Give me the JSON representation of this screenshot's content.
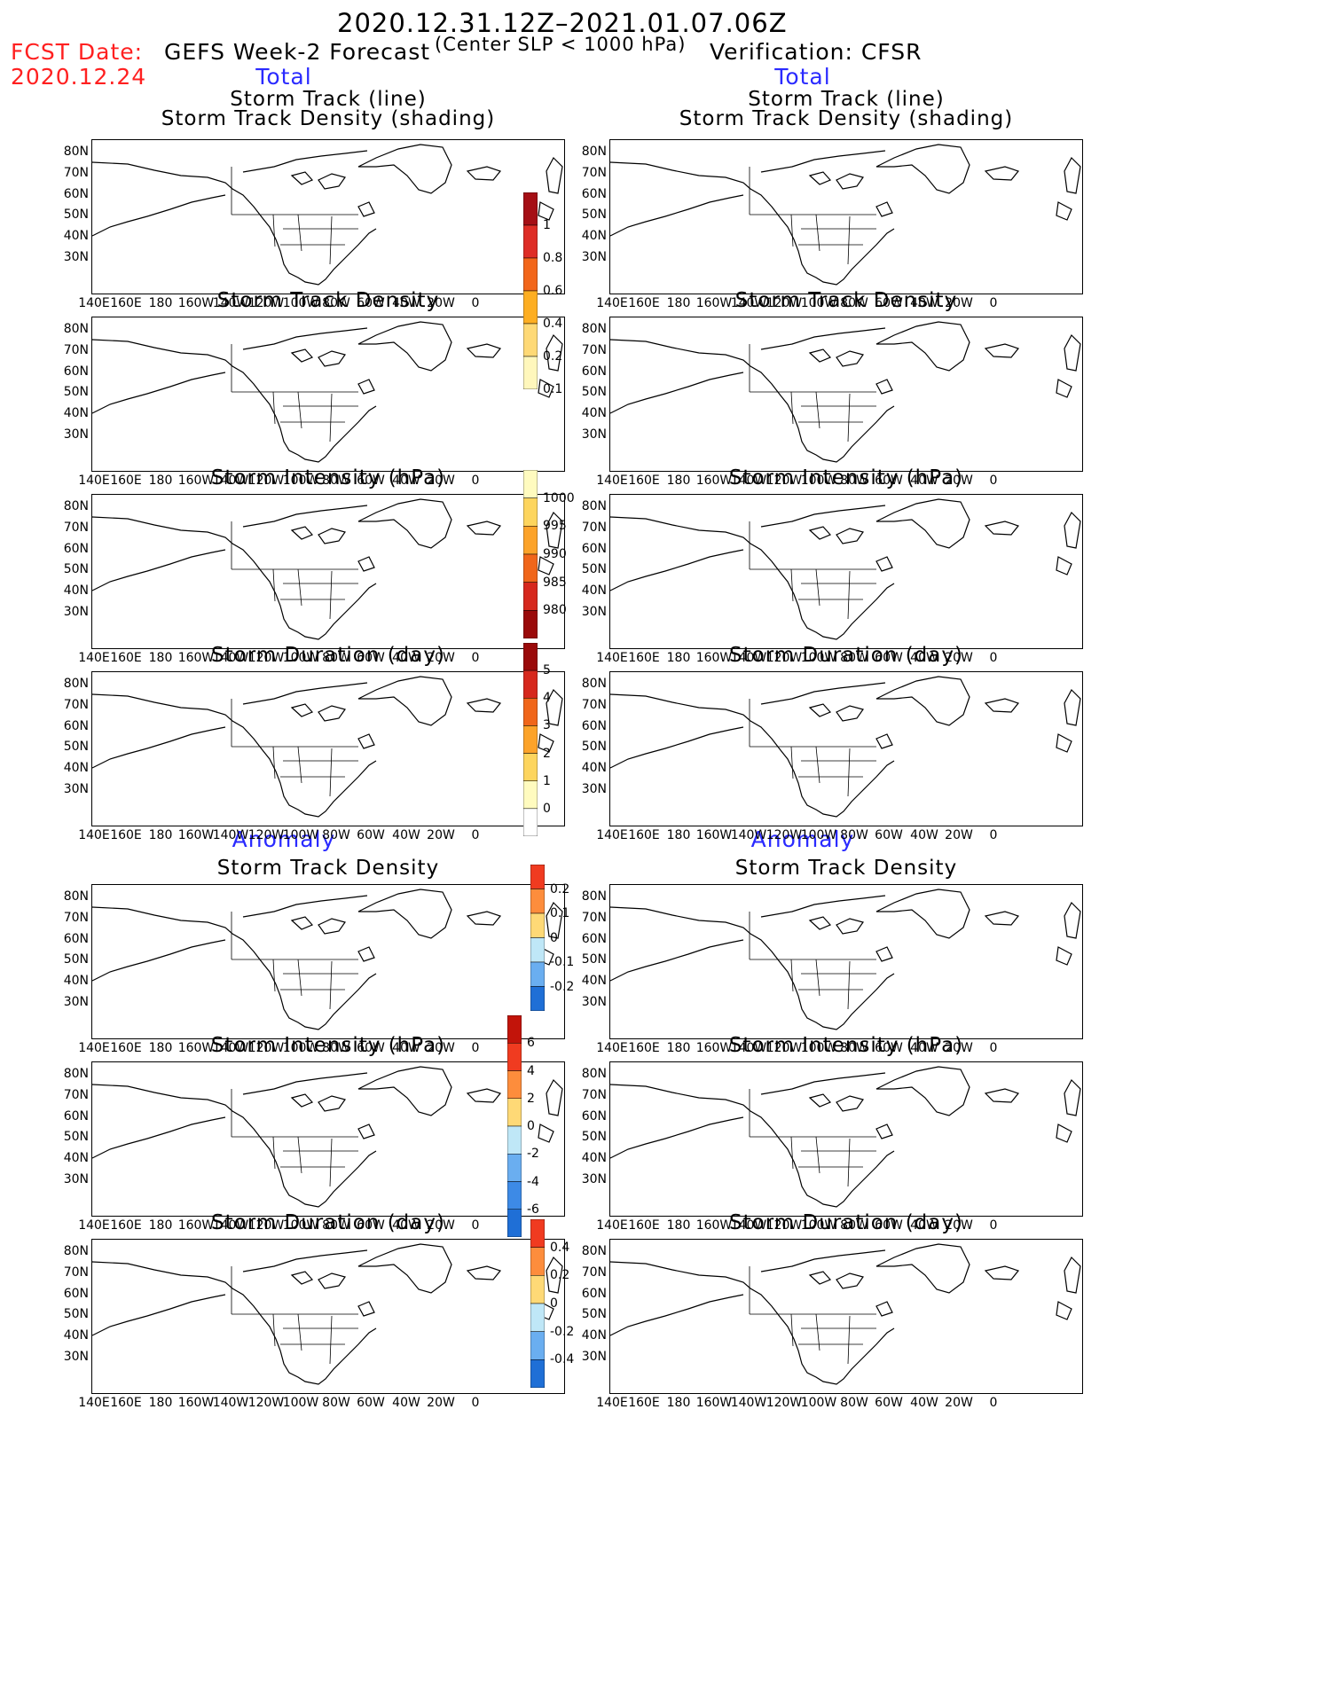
{
  "header": {
    "title": "2020.12.31.12Z–2021.01.07.06Z",
    "subtitle": "(Center SLP < 1000 hPa)",
    "fcst_label": "FCST Date:",
    "fcst_date": "2020.12.24",
    "left_heading": "GEFS Week-2 Forecast",
    "right_heading": "Verification: CFSR"
  },
  "sections": {
    "total": "Total",
    "anomaly": "Anomaly"
  },
  "panel_titles": {
    "track_line": "Storm Track (line)",
    "track_shading": "Storm Track Density (shading)",
    "density": "Storm Track Density",
    "intensity": "Storm Intensity (hPa)",
    "duration": "Storm Duration (day)"
  },
  "axes": {
    "lat_labels": [
      "80N",
      "70N",
      "60N",
      "50N",
      "40N",
      "30N"
    ],
    "lon_labels": [
      "140E",
      "160E",
      "180",
      "160W",
      "140W",
      "120W",
      "100W",
      "80W",
      "60W",
      "40W",
      "20W",
      "0"
    ]
  },
  "colorbars": [
    {
      "name": "total-density",
      "labels": [
        "1",
        "0.8",
        "0.6",
        "0.4",
        "0.2",
        "0.1"
      ],
      "colors": [
        "#a50f15",
        "#de2d26",
        "#f2661a",
        "#fdae22",
        "#fed976",
        "#fff7bc"
      ]
    },
    {
      "name": "total-intensity",
      "labels": [
        "1000",
        "995",
        "990",
        "985",
        "980"
      ],
      "colors": [
        "#fffbbf",
        "#fdd55e",
        "#fca32a",
        "#f0661a",
        "#d6281d",
        "#9a0a0a"
      ]
    },
    {
      "name": "total-duration",
      "labels": [
        "5",
        "4",
        "3",
        "2",
        "1",
        "0"
      ],
      "colors": [
        "#9a0a0a",
        "#d6281d",
        "#f0661a",
        "#fca32a",
        "#fdd55e",
        "#fffbbf",
        "#ffffff"
      ]
    },
    {
      "name": "anom-density",
      "labels": [
        "0.2",
        "0.1",
        "0",
        "-0.1",
        "-0.2"
      ],
      "colors": [
        "#f03b20",
        "#fd8d3c",
        "#fed976",
        "#bfe7f7",
        "#6aaef0",
        "#1f6fd6"
      ]
    },
    {
      "name": "anom-intensity",
      "labels": [
        "6",
        "4",
        "2",
        "0",
        "-2",
        "-4",
        "-6"
      ],
      "colors": [
        "#c2140a",
        "#f03b20",
        "#fd8d3c",
        "#fed976",
        "#bfe7f7",
        "#6aaef0",
        "#3d8ae6",
        "#1f6fd6"
      ]
    },
    {
      "name": "anom-duration",
      "labels": [
        "0.4",
        "0.2",
        "0",
        "-0.2",
        "-0.4"
      ],
      "colors": [
        "#f03b20",
        "#fd8d3c",
        "#fed976",
        "#bfe7f7",
        "#6aaef0",
        "#1f6fd6"
      ]
    }
  ]
}
